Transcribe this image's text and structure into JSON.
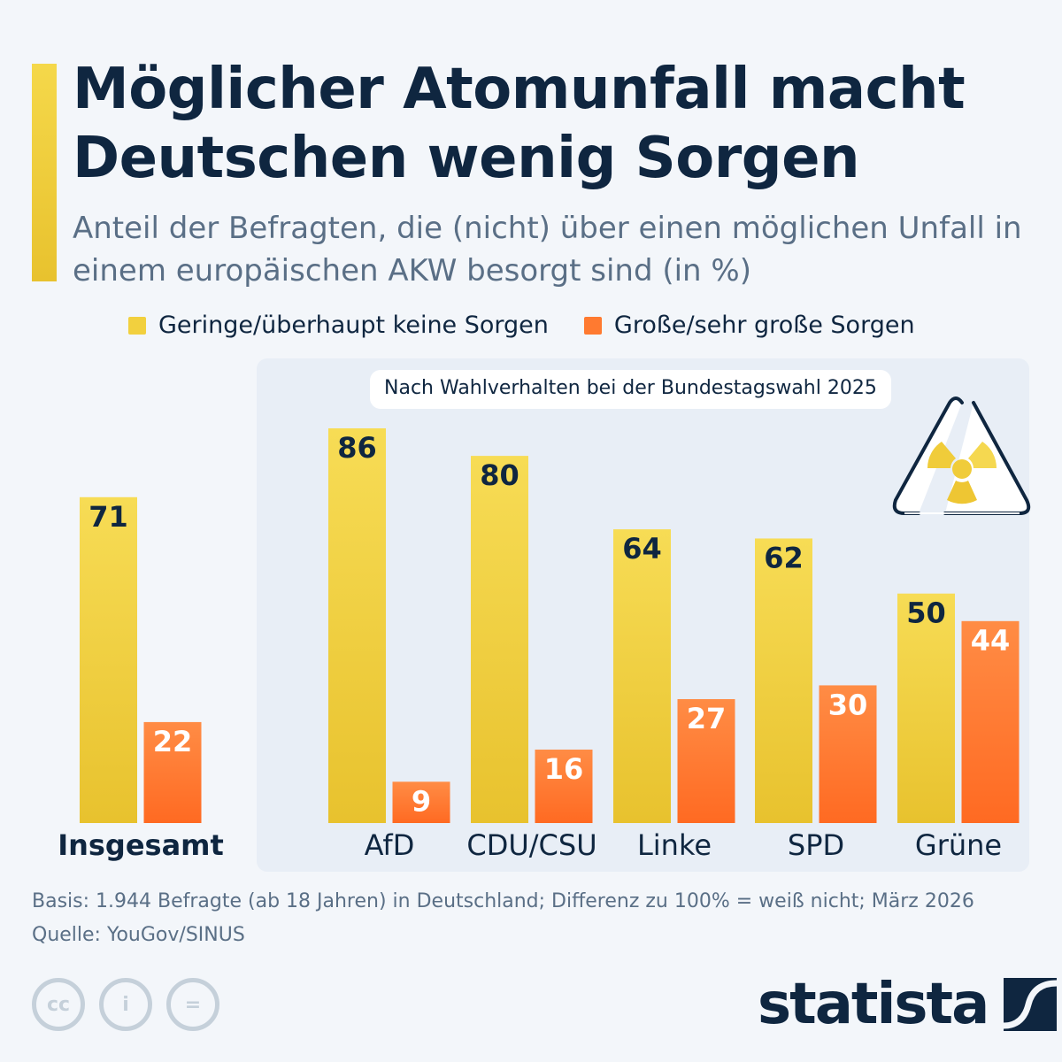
{
  "title": "Möglicher Atomunfall macht Deutschen wenig Sorgen",
  "subtitle": "Anteil der Befragten, die (nicht) über einen möglichen Unfall in einem europäischen AKW besorgt sind (in %)",
  "panel_title": "Nach Wahlverhalten bei der Bundestagswahl 2025",
  "footer": {
    "basis": "Basis: 1.944 Befragte (ab 18 Jahren) in Deutschland; Differenz zu 100% = weiß nicht; März 2026",
    "source": "Quelle: YouGov/SINUS"
  },
  "brand": "statista",
  "license_icons": [
    "cc-icon",
    "by-icon",
    "nd-icon"
  ],
  "icons": {
    "panel": "radiation-warning-icon"
  },
  "colors": {
    "yellow": "#f2d03e",
    "orange": "#ff7a30",
    "navy": "#0f2640"
  },
  "chart_data": {
    "type": "bar",
    "categories": [
      "Insgesamt",
      "AfD",
      "CDU/CSU",
      "Linke",
      "SPD",
      "Grüne"
    ],
    "series": [
      {
        "name": "Geringe/überhaupt keine Sorgen",
        "values": [
          71,
          86,
          80,
          64,
          62,
          50
        ],
        "color": "#f2d03e"
      },
      {
        "name": "Große/sehr große Sorgen",
        "values": [
          22,
          9,
          16,
          27,
          30,
          44
        ],
        "color": "#ff7a30"
      }
    ],
    "ylim": [
      0,
      100
    ],
    "grid": false,
    "legend": "top"
  }
}
